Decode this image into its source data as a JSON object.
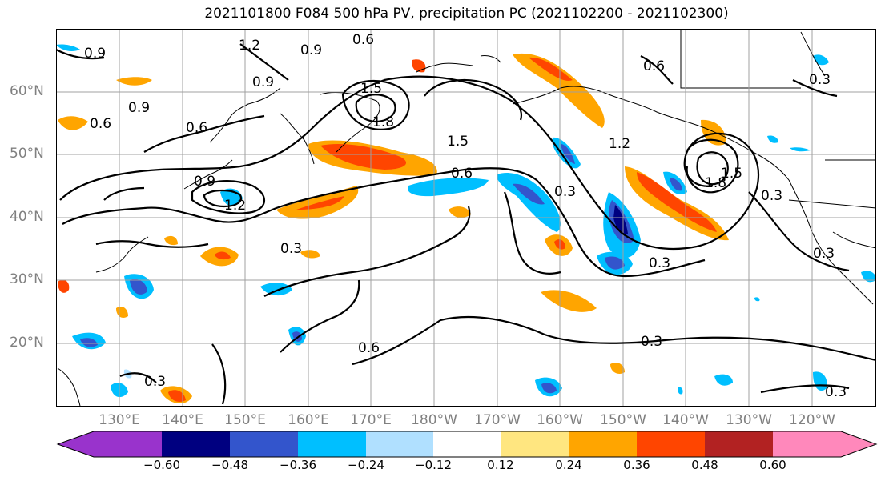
{
  "title": "2021101800 F084 500 hPa PV, precipitation PC (2021102200 - 2021102300)",
  "latitude_labels": [
    "60°N",
    "50°N",
    "40°N",
    "30°N",
    "20°N"
  ],
  "longitude_labels": [
    "130°E",
    "140°E",
    "150°E",
    "160°E",
    "170°E",
    "180°W",
    "170°W",
    "160°W",
    "150°W",
    "140°W",
    "130°W",
    "120°W"
  ],
  "colorbar": {
    "ticks": [
      "−0.60",
      "−0.48",
      "−0.36",
      "−0.24",
      "−0.12",
      "0.12",
      "0.24",
      "0.36",
      "0.48",
      "0.60"
    ],
    "colors": [
      "#9933cc",
      "#000080",
      "#3355cc",
      "#00bfff",
      "#b0e0ff",
      "#ffffff",
      "#ffe680",
      "#ffa500",
      "#ff4500",
      "#b22222",
      "#ff88bb"
    ]
  },
  "contour_labels": [
    "0.9",
    "1.2",
    "0.6",
    "0.9",
    "0.6",
    "0.9",
    "1.5",
    "1.8",
    "1.5",
    "0.6",
    "0.3",
    "0.6",
    "1.2",
    "1.8",
    "1.5",
    "0.3",
    "0.9",
    "1.2",
    "0.3",
    "0.6",
    "0.3",
    "0.3",
    "0.3",
    "0.3",
    "0.3",
    "0.3",
    "0.6",
    "0.9"
  ]
}
